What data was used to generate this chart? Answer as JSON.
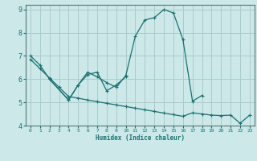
{
  "xlabel": "Humidex (Indice chaleur)",
  "bg_color": "#cce8e8",
  "grid_color": "#aacccc",
  "line_color": "#1a7070",
  "xlim": [
    -0.5,
    23.5
  ],
  "ylim": [
    4,
    9.2
  ],
  "yticks": [
    4,
    5,
    6,
    7,
    8,
    9
  ],
  "xticks": [
    0,
    1,
    2,
    3,
    4,
    5,
    6,
    7,
    8,
    9,
    10,
    11,
    12,
    13,
    14,
    15,
    16,
    17,
    18,
    19,
    20,
    21,
    22,
    23
  ],
  "line1_x": [
    0,
    1,
    2,
    4,
    5,
    6,
    7,
    8,
    9,
    10,
    11,
    12,
    13,
    14,
    15,
    16,
    17,
    18
  ],
  "line1_y": [
    7.0,
    6.6,
    6.0,
    5.1,
    5.75,
    6.3,
    6.1,
    5.85,
    5.65,
    6.15,
    7.85,
    8.55,
    8.65,
    9.0,
    8.85,
    7.7,
    5.05,
    5.3
  ],
  "line2_x": [
    2,
    4,
    5,
    6,
    7,
    8,
    9,
    10
  ],
  "line2_y": [
    6.0,
    5.1,
    5.75,
    6.2,
    6.3,
    5.5,
    5.75,
    6.1
  ],
  "line3_x": [
    0,
    1,
    2,
    3,
    4,
    5,
    6,
    7,
    8,
    9,
    10,
    11,
    12,
    13,
    14,
    15,
    16,
    17,
    18,
    19,
    20,
    21,
    22,
    23
  ],
  "line3_y": [
    6.85,
    6.45,
    6.05,
    5.65,
    5.25,
    5.18,
    5.1,
    5.03,
    4.96,
    4.89,
    4.82,
    4.75,
    4.68,
    4.61,
    4.54,
    4.47,
    4.4,
    4.55,
    4.5,
    4.45,
    4.43,
    4.45,
    4.1,
    4.45
  ]
}
